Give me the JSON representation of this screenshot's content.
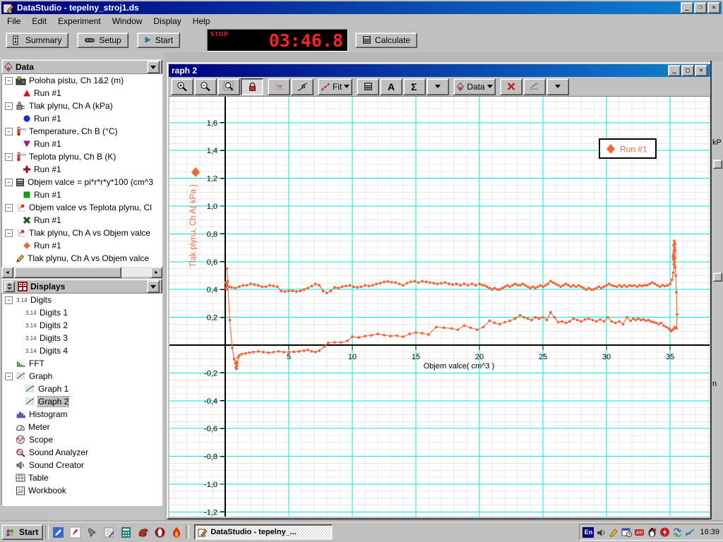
{
  "window": {
    "title": "DataStudio - tepelny_stroj1.ds"
  },
  "menu": {
    "items": [
      "File",
      "Edit",
      "Experiment",
      "Window",
      "Display",
      "Help"
    ]
  },
  "toolbar": {
    "summary_label": "Summary",
    "setup_label": "Setup",
    "start_label": "Start",
    "stop_label": "STOP",
    "timer_value": "03:46.8",
    "calculate_label": "Calculate"
  },
  "data_panel": {
    "title": "Data",
    "items": [
      {
        "icon": "interface-icon",
        "label": "Poloha pistu, Ch 1&2 (m)",
        "expand": true,
        "run": {
          "marker": "triangle-up",
          "color": "#dd1111",
          "label": "Run #1"
        }
      },
      {
        "icon": "sensor-icon",
        "label": "Tlak plynu, Ch A (kPa)",
        "expand": true,
        "run": {
          "marker": "circle",
          "color": "#1133cc",
          "label": "Run #1"
        }
      },
      {
        "icon": "thermometer-icon",
        "label": "Temperature, Ch B (°C)",
        "expand": true,
        "run": {
          "marker": "triangle-down",
          "color": "#991899",
          "label": "Run #1"
        }
      },
      {
        "icon": "thermometer-icon",
        "label": "Teplota plynu, Ch B (K)",
        "expand": true,
        "run": {
          "marker": "plus",
          "color": "#991111",
          "label": "Run #1"
        }
      },
      {
        "icon": "calculator-icon",
        "label": "Objem valce = pi*r*r*y*100 (cm^3",
        "expand": true,
        "run": {
          "marker": "square",
          "color": "#11a011",
          "label": "Run #1"
        }
      },
      {
        "icon": "xy-graph-icon",
        "label": "Objem valce vs Teplota plynu, Cl",
        "expand": true,
        "run": {
          "marker": "x",
          "color": "#115511",
          "label": "Run #1"
        }
      },
      {
        "icon": "xy-graph-icon",
        "label": "Tlak plynu, Ch A vs Objem valce",
        "expand": true,
        "run": {
          "marker": "diamond",
          "color": "#f2673a",
          "label": "Run #1"
        }
      },
      {
        "icon": "pencil-icon",
        "label": "Tlak plynu, Ch A vs Objem valce",
        "expand": false
      }
    ]
  },
  "displays_panel": {
    "title": "Displays",
    "items": [
      {
        "icon": "digits-icon",
        "label": "Digits",
        "expand": true,
        "children": [
          {
            "icon": "digits-icon",
            "label": "Digits 1"
          },
          {
            "icon": "digits-icon",
            "label": "Digits 2"
          },
          {
            "icon": "digits-icon",
            "label": "Digits 3"
          },
          {
            "icon": "digits-icon",
            "label": "Digits 4"
          }
        ]
      },
      {
        "icon": "fft-icon",
        "label": "FFT"
      },
      {
        "icon": "graph-icon",
        "label": "Graph",
        "expand": true,
        "children": [
          {
            "icon": "graph-icon",
            "label": "Graph 1"
          },
          {
            "icon": "graph-icon",
            "label": "Graph 2",
            "selected": true
          }
        ]
      },
      {
        "icon": "histogram-icon",
        "label": "Histogram"
      },
      {
        "icon": "meter-icon",
        "label": "Meter"
      },
      {
        "icon": "scope-icon",
        "label": "Scope"
      },
      {
        "icon": "sound-analyzer-icon",
        "label": "Sound Analyzer"
      },
      {
        "icon": "sound-creator-icon",
        "label": "Sound Creator"
      },
      {
        "icon": "table-icon",
        "label": "Table"
      },
      {
        "icon": "workbook-icon",
        "label": "Workbook"
      }
    ]
  },
  "graph_window": {
    "title": "raph 2",
    "toolbar_buttons": [
      {
        "icon": "zoom-in-icon"
      },
      {
        "icon": "zoom-out-icon"
      },
      {
        "icon": "zoom-select-icon"
      },
      {
        "icon": "lock-icon",
        "pressed": true
      },
      {
        "sep": true
      },
      {
        "icon": "align-xy-icon"
      },
      {
        "icon": "smart-tool-icon"
      },
      {
        "sep": true
      },
      {
        "icon": "fit-icon",
        "label": "Fit",
        "dropdown": true
      },
      {
        "sep": true
      },
      {
        "icon": "calculator-icon"
      },
      {
        "icon": "text-icon"
      },
      {
        "icon": "sigma-icon"
      },
      {
        "icon": "drop-icon"
      },
      {
        "sep": true
      },
      {
        "icon": "data-diamond-icon",
        "label": "Data",
        "dropdown": true
      },
      {
        "sep": true
      },
      {
        "icon": "delete-icon"
      },
      {
        "icon": "graph-settings-icon"
      },
      {
        "icon": "drop-icon"
      }
    ]
  },
  "chart_data": {
    "type": "scatter-line",
    "title": "",
    "xlabel": "Objem valce( cm^3 )",
    "ylabel": "Tlak plynu, Ch A( kPa )",
    "xlim": [
      -4.4,
      38.1
    ],
    "ylim": [
      -1.23,
      1.79
    ],
    "x_ticks": [
      {
        "v": 5,
        "label": "5"
      },
      {
        "v": 10,
        "label": "10"
      },
      {
        "v": 15,
        "label": "15"
      },
      {
        "v": 20,
        "label": "20"
      },
      {
        "v": 25,
        "label": "25"
      },
      {
        "v": 30,
        "label": "30"
      },
      {
        "v": 35,
        "label": "35"
      }
    ],
    "y_ticks": [
      {
        "v": 1.6,
        "label": "1,6"
      },
      {
        "v": 1.4,
        "label": "1,4"
      },
      {
        "v": 1.2,
        "label": "1,2"
      },
      {
        "v": 1.0,
        "label": "1,0"
      },
      {
        "v": 0.8,
        "label": "0,8"
      },
      {
        "v": 0.6,
        "label": "0,6"
      },
      {
        "v": 0.4,
        "label": "0,4"
      },
      {
        "v": 0.2,
        "label": "0,2"
      },
      {
        "v": -0.2,
        "label": "-0,2"
      },
      {
        "v": -0.4,
        "label": "-0,4"
      },
      {
        "v": -0.6,
        "label": "-0,6"
      },
      {
        "v": -0.8,
        "label": "-0,8"
      },
      {
        "v": -1.0,
        "label": "-1,0"
      },
      {
        "v": -1.2,
        "label": "-1,2"
      }
    ],
    "grid": {
      "x_major_step": 5,
      "y_major_step": 0.2,
      "x_minor_step": 1,
      "y_minor_step": 0.05,
      "major_color": "#00e4e4",
      "minor_color": "#e8e8e8"
    },
    "legend_label": "Run #1",
    "series_color": "#f2673a",
    "points": [
      [
        0.12,
        0.55
      ],
      [
        0.2,
        0.46
      ],
      [
        0.35,
        0.18
      ],
      [
        0.55,
        -0.02
      ],
      [
        0.7,
        -0.1
      ],
      [
        0.8,
        -0.13
      ],
      [
        0.84,
        -0.16
      ],
      [
        0.88,
        -0.12
      ],
      [
        0.86,
        -0.17
      ],
      [
        0.92,
        -0.15
      ],
      [
        0.9,
        -0.17
      ],
      [
        0.95,
        -0.13
      ],
      [
        1.0,
        -0.09
      ],
      [
        1.1,
        -0.075
      ],
      [
        1.3,
        -0.065
      ],
      [
        1.6,
        -0.06
      ],
      [
        1.9,
        -0.055
      ],
      [
        2.2,
        -0.05
      ],
      [
        2.6,
        -0.045
      ],
      [
        3.0,
        -0.05
      ],
      [
        3.4,
        -0.055
      ],
      [
        3.8,
        -0.05
      ],
      [
        4.2,
        -0.045
      ],
      [
        4.6,
        -0.05
      ],
      [
        5.0,
        -0.05
      ],
      [
        5.4,
        -0.048
      ],
      [
        5.8,
        -0.045
      ],
      [
        6.2,
        -0.04
      ],
      [
        6.5,
        -0.035
      ],
      [
        6.8,
        -0.045
      ],
      [
        7.1,
        -0.05
      ],
      [
        7.4,
        -0.04
      ],
      [
        7.8,
        -0.01
      ],
      [
        8.1,
        0.015
      ],
      [
        8.6,
        0.02
      ],
      [
        9.1,
        0.02
      ],
      [
        9.6,
        0.03
      ],
      [
        10.0,
        0.06
      ],
      [
        10.5,
        0.055
      ],
      [
        11.0,
        0.065
      ],
      [
        11.5,
        0.07
      ],
      [
        12.0,
        0.08
      ],
      [
        12.5,
        0.072
      ],
      [
        13.0,
        0.065
      ],
      [
        13.5,
        0.068
      ],
      [
        14.0,
        0.06
      ],
      [
        14.5,
        0.08
      ],
      [
        15.0,
        0.09
      ],
      [
        15.5,
        0.085
      ],
      [
        16.0,
        0.075
      ],
      [
        16.6,
        0.13
      ],
      [
        17.2,
        0.125
      ],
      [
        17.8,
        0.12
      ],
      [
        18.3,
        0.11
      ],
      [
        18.8,
        0.14
      ],
      [
        19.3,
        0.125
      ],
      [
        19.8,
        0.11
      ],
      [
        20.3,
        0.13
      ],
      [
        20.8,
        0.175
      ],
      [
        21.2,
        0.16
      ],
      [
        21.6,
        0.15
      ],
      [
        22.0,
        0.165
      ],
      [
        22.4,
        0.175
      ],
      [
        22.8,
        0.19
      ],
      [
        23.2,
        0.215
      ],
      [
        23.5,
        0.2
      ],
      [
        23.8,
        0.19
      ],
      [
        24.1,
        0.18
      ],
      [
        24.4,
        0.2
      ],
      [
        24.7,
        0.19
      ],
      [
        25.0,
        0.2
      ],
      [
        25.3,
        0.18
      ],
      [
        25.6,
        0.235
      ],
      [
        25.9,
        0.2
      ],
      [
        26.2,
        0.165
      ],
      [
        26.5,
        0.17
      ],
      [
        26.8,
        0.16
      ],
      [
        27.1,
        0.17
      ],
      [
        27.4,
        0.19
      ],
      [
        27.7,
        0.18
      ],
      [
        28.0,
        0.17
      ],
      [
        28.3,
        0.185
      ],
      [
        28.6,
        0.19
      ],
      [
        28.9,
        0.18
      ],
      [
        29.2,
        0.17
      ],
      [
        29.5,
        0.185
      ],
      [
        29.8,
        0.17
      ],
      [
        30.1,
        0.2
      ],
      [
        30.4,
        0.17
      ],
      [
        30.7,
        0.16
      ],
      [
        31.0,
        0.17
      ],
      [
        31.3,
        0.15
      ],
      [
        31.6,
        0.2
      ],
      [
        31.9,
        0.175
      ],
      [
        32.1,
        0.19
      ],
      [
        32.3,
        0.18
      ],
      [
        32.5,
        0.19
      ],
      [
        32.7,
        0.18
      ],
      [
        32.9,
        0.185
      ],
      [
        33.1,
        0.175
      ],
      [
        33.3,
        0.18
      ],
      [
        33.5,
        0.17
      ],
      [
        33.7,
        0.165
      ],
      [
        33.9,
        0.16
      ],
      [
        34.1,
        0.15
      ],
      [
        34.3,
        0.16
      ],
      [
        34.5,
        0.14
      ],
      [
        34.7,
        0.13
      ],
      [
        34.9,
        0.12
      ],
      [
        35.0,
        0.11
      ],
      [
        35.1,
        0.1
      ],
      [
        35.2,
        0.11
      ],
      [
        35.3,
        0.12
      ],
      [
        35.4,
        0.13
      ],
      [
        35.5,
        0.12
      ],
      [
        35.55,
        0.22
      ],
      [
        35.5,
        0.38
      ],
      [
        35.45,
        0.5
      ],
      [
        35.4,
        0.56
      ],
      [
        35.35,
        0.6
      ],
      [
        35.3,
        0.58
      ],
      [
        35.25,
        0.62
      ],
      [
        35.3,
        0.64
      ],
      [
        35.35,
        0.62
      ],
      [
        35.28,
        0.66
      ],
      [
        35.22,
        0.64
      ],
      [
        35.3,
        0.68
      ],
      [
        35.35,
        0.7
      ],
      [
        35.28,
        0.72
      ],
      [
        35.32,
        0.75
      ],
      [
        35.4,
        0.73
      ],
      [
        35.42,
        0.68
      ],
      [
        35.38,
        0.63
      ],
      [
        35.33,
        0.58
      ],
      [
        35.25,
        0.52
      ],
      [
        35.15,
        0.47
      ],
      [
        35.0,
        0.44
      ],
      [
        34.8,
        0.43
      ],
      [
        34.6,
        0.425
      ],
      [
        34.4,
        0.43
      ],
      [
        34.2,
        0.42
      ],
      [
        34.0,
        0.43
      ],
      [
        33.8,
        0.44
      ],
      [
        33.6,
        0.45
      ],
      [
        33.4,
        0.44
      ],
      [
        33.2,
        0.43
      ],
      [
        33.0,
        0.432
      ],
      [
        32.8,
        0.425
      ],
      [
        32.6,
        0.43
      ],
      [
        32.4,
        0.42
      ],
      [
        32.2,
        0.43
      ],
      [
        32.0,
        0.425
      ],
      [
        31.8,
        0.43
      ],
      [
        31.6,
        0.42
      ],
      [
        31.4,
        0.43
      ],
      [
        31.2,
        0.42
      ],
      [
        31.0,
        0.43
      ],
      [
        30.8,
        0.42
      ],
      [
        30.6,
        0.425
      ],
      [
        30.4,
        0.43
      ],
      [
        30.2,
        0.44
      ],
      [
        30.0,
        0.43
      ],
      [
        29.8,
        0.42
      ],
      [
        29.6,
        0.41
      ],
      [
        29.4,
        0.42
      ],
      [
        29.2,
        0.41
      ],
      [
        29.0,
        0.4
      ],
      [
        28.8,
        0.4
      ],
      [
        28.6,
        0.41
      ],
      [
        28.4,
        0.4
      ],
      [
        28.2,
        0.41
      ],
      [
        28.0,
        0.42
      ],
      [
        27.8,
        0.43
      ],
      [
        27.6,
        0.42
      ],
      [
        27.4,
        0.43
      ],
      [
        27.2,
        0.42
      ],
      [
        27.0,
        0.43
      ],
      [
        26.8,
        0.44
      ],
      [
        26.6,
        0.43
      ],
      [
        26.4,
        0.42
      ],
      [
        26.2,
        0.43
      ],
      [
        26.0,
        0.44
      ],
      [
        25.8,
        0.45
      ],
      [
        25.6,
        0.46
      ],
      [
        25.4,
        0.44
      ],
      [
        25.2,
        0.43
      ],
      [
        25.0,
        0.42
      ],
      [
        24.8,
        0.43
      ],
      [
        24.6,
        0.42
      ],
      [
        24.4,
        0.41
      ],
      [
        24.2,
        0.42
      ],
      [
        24.0,
        0.41
      ],
      [
        23.8,
        0.42
      ],
      [
        23.6,
        0.43
      ],
      [
        23.4,
        0.44
      ],
      [
        23.2,
        0.43
      ],
      [
        23.0,
        0.432
      ],
      [
        22.8,
        0.44
      ],
      [
        22.6,
        0.43
      ],
      [
        22.4,
        0.42
      ],
      [
        22.2,
        0.43
      ],
      [
        22.0,
        0.42
      ],
      [
        21.8,
        0.41
      ],
      [
        21.6,
        0.4
      ],
      [
        21.4,
        0.4
      ],
      [
        21.2,
        0.41
      ],
      [
        21.0,
        0.4
      ],
      [
        20.8,
        0.41
      ],
      [
        20.6,
        0.42
      ],
      [
        20.4,
        0.43
      ],
      [
        20.2,
        0.432
      ],
      [
        20.0,
        0.44
      ],
      [
        19.7,
        0.43
      ],
      [
        19.4,
        0.44
      ],
      [
        19.1,
        0.43
      ],
      [
        18.8,
        0.44
      ],
      [
        18.5,
        0.43
      ],
      [
        18.2,
        0.44
      ],
      [
        17.9,
        0.435
      ],
      [
        17.6,
        0.44
      ],
      [
        17.3,
        0.45
      ],
      [
        17.0,
        0.445
      ],
      [
        16.7,
        0.44
      ],
      [
        16.4,
        0.445
      ],
      [
        16.1,
        0.45
      ],
      [
        15.8,
        0.455
      ],
      [
        15.5,
        0.46
      ],
      [
        15.2,
        0.45
      ],
      [
        14.9,
        0.46
      ],
      [
        14.6,
        0.455
      ],
      [
        14.3,
        0.445
      ],
      [
        14.0,
        0.43
      ],
      [
        13.7,
        0.44
      ],
      [
        13.4,
        0.45
      ],
      [
        13.1,
        0.452
      ],
      [
        12.8,
        0.458
      ],
      [
        12.5,
        0.455
      ],
      [
        12.2,
        0.445
      ],
      [
        11.9,
        0.44
      ],
      [
        11.6,
        0.43
      ],
      [
        11.3,
        0.425
      ],
      [
        11.0,
        0.43
      ],
      [
        10.7,
        0.42
      ],
      [
        10.4,
        0.415
      ],
      [
        10.1,
        0.42
      ],
      [
        9.8,
        0.43
      ],
      [
        9.5,
        0.425
      ],
      [
        9.2,
        0.42
      ],
      [
        8.9,
        0.41
      ],
      [
        8.6,
        0.415
      ],
      [
        8.3,
        0.39
      ],
      [
        8.0,
        0.375
      ],
      [
        7.7,
        0.39
      ],
      [
        7.4,
        0.43
      ],
      [
        7.1,
        0.44
      ],
      [
        6.8,
        0.425
      ],
      [
        6.5,
        0.41
      ],
      [
        6.2,
        0.4
      ],
      [
        5.9,
        0.39
      ],
      [
        5.6,
        0.385
      ],
      [
        5.3,
        0.39
      ],
      [
        5.0,
        0.39
      ],
      [
        4.7,
        0.385
      ],
      [
        4.4,
        0.39
      ],
      [
        4.1,
        0.42
      ],
      [
        3.8,
        0.425
      ],
      [
        3.5,
        0.43
      ],
      [
        3.2,
        0.42
      ],
      [
        2.9,
        0.42
      ],
      [
        2.6,
        0.43
      ],
      [
        2.3,
        0.435
      ],
      [
        2.0,
        0.44
      ],
      [
        1.7,
        0.43
      ],
      [
        1.4,
        0.43
      ],
      [
        1.1,
        0.42
      ],
      [
        0.8,
        0.41
      ],
      [
        0.5,
        0.415
      ],
      [
        0.3,
        0.42
      ],
      [
        0.15,
        0.44
      ],
      [
        0.08,
        0.41
      ],
      [
        0.12,
        0.43
      ],
      [
        0.05,
        0.45
      ],
      [
        0.1,
        0.4
      ]
    ]
  },
  "background_window": {
    "fragment_top": "kP",
    "fragment_bottom": "n"
  },
  "taskbar": {
    "start_label": "Start",
    "task_label": "DataStudio - tepelny_...",
    "time": "16:39",
    "language_indicator": "En",
    "quicklaunch": [
      "edit-icon",
      "acrobat-icon",
      "claw-icon",
      "notes-icon",
      "pocket-calc-icon",
      "dragon-icon",
      "opera-icon",
      "flame-icon"
    ],
    "tray": [
      "volume-icon",
      "brush-icon",
      "scheduler-icon",
      "ati-icon",
      "penguin-icon",
      "flash-icon",
      "sync-icon",
      "connection-icon"
    ]
  }
}
